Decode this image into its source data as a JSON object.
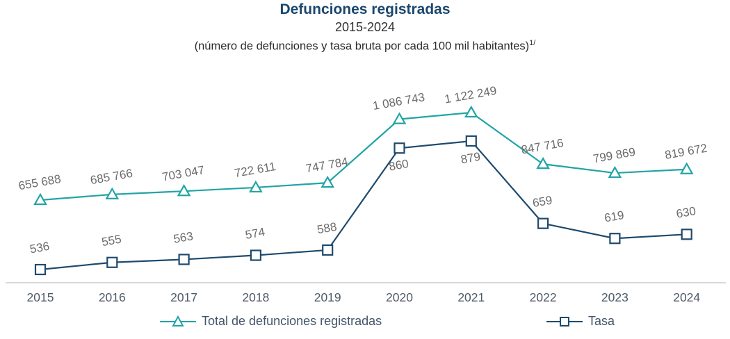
{
  "header": {
    "title": "Defunciones registradas",
    "period": "2015-2024",
    "note": "(número de defunciones y tasa bruta por cada 100 mil habitantes)",
    "note_superscript": "1/"
  },
  "colors": {
    "title": "#1A476E",
    "total_series": "#22A4A6",
    "tasa_series": "#1E4A6D",
    "data_label": "#6B6B6B",
    "axis_line": "#D9D9D9",
    "year_label": "#4E5A66",
    "legend_text": "#44546A"
  },
  "chart_data": {
    "type": "line",
    "title": "Defunciones registradas",
    "subtitle": "2015-2024",
    "note": "(número de defunciones y tasa bruta por cada 100 mil habitantes) 1/",
    "categories": [
      "2015",
      "2016",
      "2017",
      "2018",
      "2019",
      "2020",
      "2021",
      "2022",
      "2023",
      "2024"
    ],
    "series": [
      {
        "name": "Total de defunciones registradas",
        "marker": "triangle",
        "color": "#22A4A6",
        "values": [
          655688,
          685766,
          703047,
          722611,
          747784,
          1086743,
          1122249,
          847716,
          799869,
          819672
        ],
        "labels": [
          "655 688",
          "685 766",
          "703 047",
          "722 611",
          "747 784",
          "1 086 743",
          "1 122 249",
          "847 716",
          "799 869",
          "819 672"
        ]
      },
      {
        "name": "Tasa",
        "marker": "square",
        "color": "#1E4A6D",
        "values": [
          536,
          555,
          563,
          574,
          588,
          860,
          879,
          659,
          619,
          630
        ],
        "labels": [
          "536",
          "555",
          "563",
          "574",
          "588",
          "860",
          "879",
          "659",
          "619",
          "630"
        ]
      }
    ],
    "layout_hints": {
      "grid": "off",
      "y_axes_visible": false,
      "x_axis_visible": true,
      "legend_position": "bottom",
      "data_labels_rotation_deg": -10
    }
  }
}
